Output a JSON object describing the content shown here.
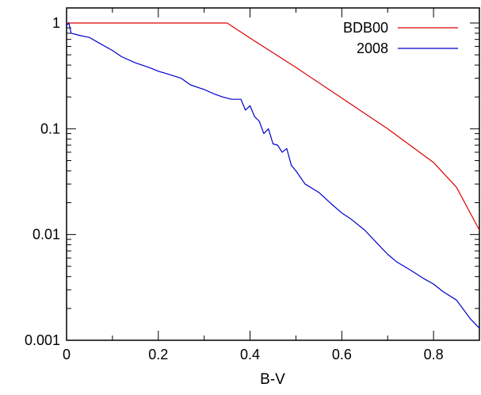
{
  "chart_data": {
    "type": "line",
    "title": "",
    "xlabel": "B-V",
    "ylabel": "",
    "xlim": [
      0,
      0.9
    ],
    "ylim": [
      0.001,
      1.2
    ],
    "yscale": "log",
    "grid": false,
    "legend_position": "top-right",
    "x_ticks": [
      {
        "value": 0,
        "label": "0"
      },
      {
        "value": 0.2,
        "label": "0.2"
      },
      {
        "value": 0.4,
        "label": "0.4"
      },
      {
        "value": 0.6,
        "label": "0.6"
      },
      {
        "value": 0.8,
        "label": "0.8"
      }
    ],
    "y_ticks": [
      {
        "value": 0.001,
        "label": "0.001"
      },
      {
        "value": 0.01,
        "label": "0.01"
      },
      {
        "value": 0.1,
        "label": "0.1"
      },
      {
        "value": 1,
        "label": "1"
      }
    ],
    "series": [
      {
        "name": "BDB00",
        "color": "#dd0000",
        "x": [
          0,
          0.35,
          0.4,
          0.5,
          0.6,
          0.7,
          0.8,
          0.85,
          0.9
        ],
        "y": [
          1,
          1,
          0.72,
          0.38,
          0.195,
          0.1,
          0.048,
          0.028,
          0.011
        ]
      },
      {
        "name": "2008",
        "color": "#0000cc",
        "x": [
          0,
          0.005,
          0.01,
          0.02,
          0.03,
          0.05,
          0.07,
          0.1,
          0.12,
          0.15,
          0.18,
          0.2,
          0.22,
          0.25,
          0.27,
          0.3,
          0.32,
          0.34,
          0.36,
          0.38,
          0.39,
          0.4,
          0.41,
          0.42,
          0.43,
          0.44,
          0.45,
          0.46,
          0.47,
          0.48,
          0.49,
          0.5,
          0.52,
          0.55,
          0.58,
          0.6,
          0.62,
          0.65,
          0.68,
          0.7,
          0.72,
          0.75,
          0.78,
          0.8,
          0.82,
          0.85,
          0.88,
          0.9
        ],
        "y": [
          0.95,
          1.0,
          0.8,
          0.78,
          0.76,
          0.73,
          0.65,
          0.55,
          0.48,
          0.42,
          0.38,
          0.35,
          0.33,
          0.3,
          0.26,
          0.235,
          0.215,
          0.2,
          0.19,
          0.19,
          0.15,
          0.165,
          0.13,
          0.118,
          0.09,
          0.1,
          0.072,
          0.07,
          0.06,
          0.065,
          0.045,
          0.04,
          0.03,
          0.025,
          0.019,
          0.016,
          0.014,
          0.011,
          0.008,
          0.0065,
          0.0055,
          0.0046,
          0.0038,
          0.0034,
          0.0029,
          0.0024,
          0.0016,
          0.0013
        ]
      }
    ]
  }
}
